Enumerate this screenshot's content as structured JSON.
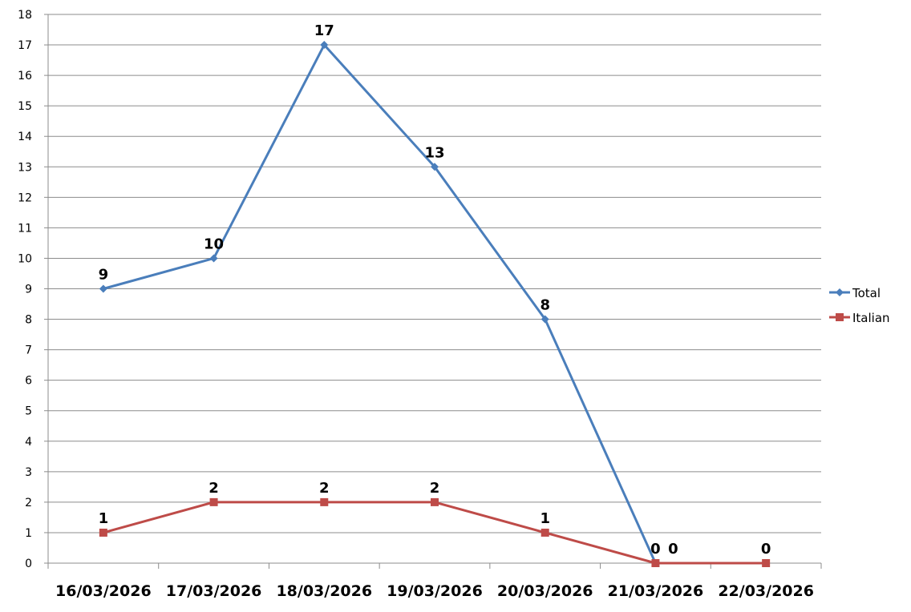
{
  "chart_data": {
    "type": "line",
    "categories": [
      "16/03/2026",
      "17/03/2026",
      "18/03/2026",
      "19/03/2026",
      "20/03/2026",
      "21/03/2026",
      "22/03/2026"
    ],
    "series": [
      {
        "name": "Total",
        "values": [
          9,
          10,
          17,
          13,
          8,
          0,
          null
        ],
        "color": "#4a7ebb",
        "marker": "diamond"
      },
      {
        "name": "Italian",
        "values": [
          1,
          2,
          2,
          2,
          1,
          0,
          0
        ],
        "color": "#be4b48",
        "marker": "square"
      }
    ],
    "ylim": [
      0,
      18
    ],
    "ytick_step": 1,
    "grid": true,
    "legend": "right",
    "data_labels": true
  }
}
